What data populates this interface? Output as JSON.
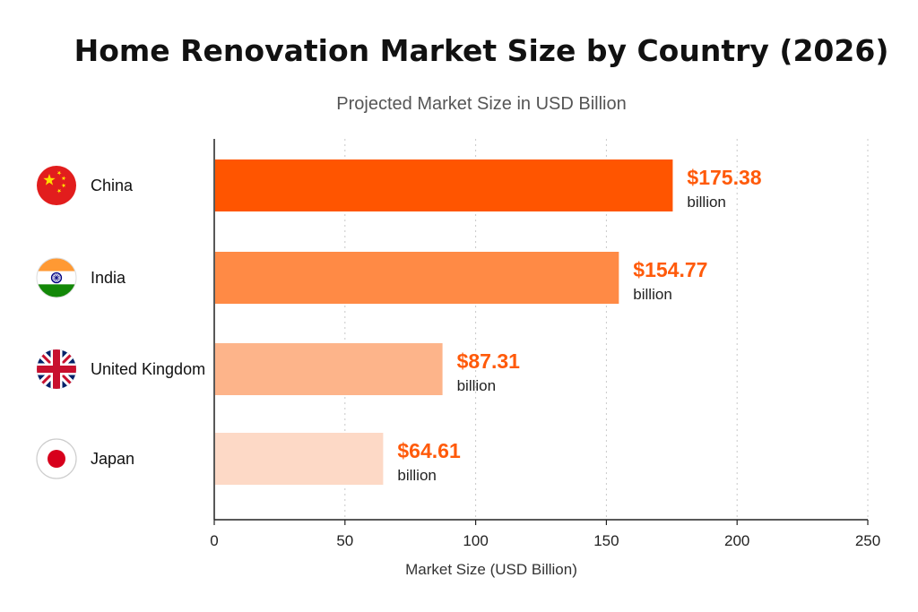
{
  "chart_data": {
    "type": "bar",
    "orientation": "horizontal",
    "title": "Home Renovation Market Size by Country (2026)",
    "subtitle": "Projected Market Size in USD Billion",
    "xlabel": "Market Size (USD Billion)",
    "ylabel": "",
    "xlim": [
      0,
      250
    ],
    "xticks": [
      0,
      50,
      100,
      150,
      200,
      250
    ],
    "grid": "vertical-dotted",
    "categories": [
      "China",
      "India",
      "United Kingdom",
      "Japan"
    ],
    "values": [
      175.38,
      154.77,
      87.31,
      64.61
    ],
    "value_labels": [
      "$175.38",
      "$154.77",
      "$87.31",
      "$64.61"
    ],
    "value_unit_label": "billion",
    "bar_colors": [
      "#ff5500",
      "#ff8a45",
      "#fdb48a",
      "#fdd9c6"
    ],
    "value_label_color": "#ff5a0a",
    "flags": [
      "china-flag-icon",
      "india-flag-icon",
      "uk-flag-icon",
      "japan-flag-icon"
    ]
  }
}
